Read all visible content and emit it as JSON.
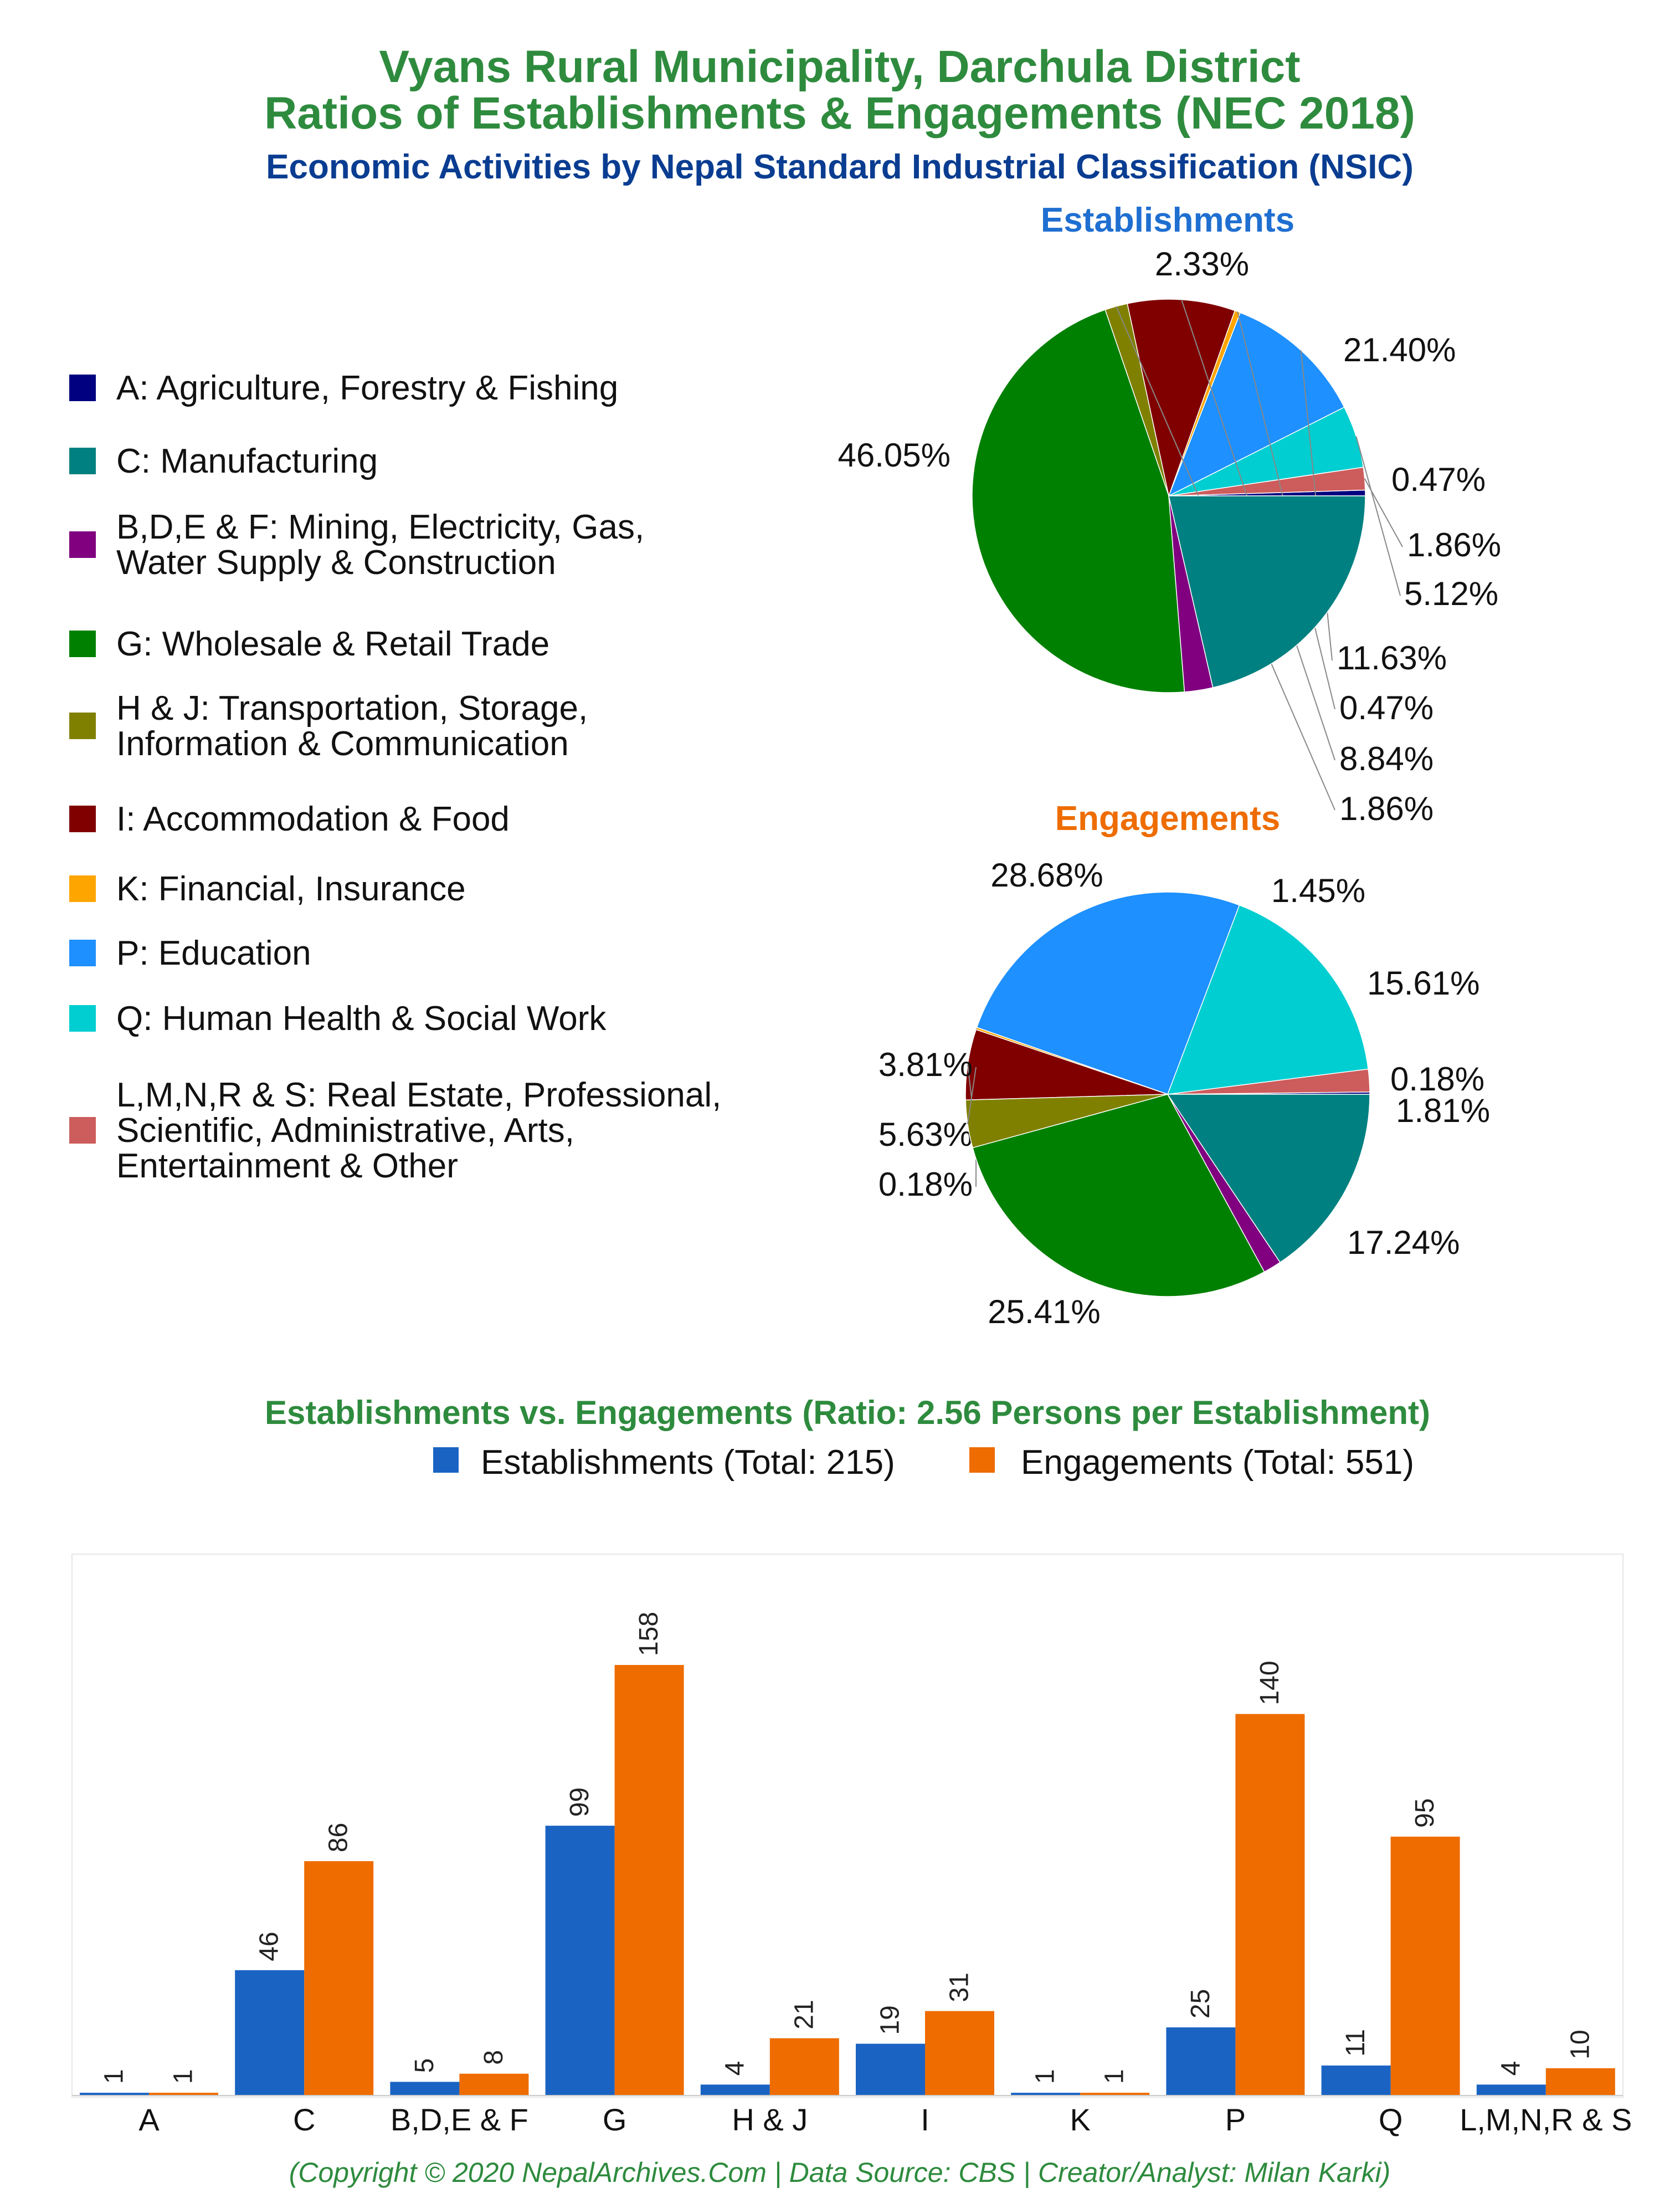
{
  "header": {
    "title_line1": "Vyans Rural Municipality, Darchula District",
    "title_line2": "Ratios of Establishments & Engagements (NEC 2018)",
    "subtitle": "Economic Activities by Nepal Standard Industrial Classification (NSIC)"
  },
  "legend": {
    "items": [
      {
        "lines": [
          "A: Agriculture, Forestry & Fishing"
        ],
        "color": "#000080"
      },
      {
        "lines": [
          "C: Manufacturing"
        ],
        "color": "#008080"
      },
      {
        "lines": [
          "B,D,E & F: Mining, Electricity, Gas,",
          "Water Supply & Construction"
        ],
        "color": "#800080"
      },
      {
        "lines": [
          "G: Wholesale & Retail Trade"
        ],
        "color": "#008000"
      },
      {
        "lines": [
          "H & J: Transportation, Storage,",
          "Information & Communication"
        ],
        "color": "#808000"
      },
      {
        "lines": [
          "I: Accommodation & Food"
        ],
        "color": "#800000"
      },
      {
        "lines": [
          "K: Financial, Insurance"
        ],
        "color": "#FFA500"
      },
      {
        "lines": [
          "P: Education"
        ],
        "color": "#1E90FF"
      },
      {
        "lines": [
          "Q: Human Health & Social Work"
        ],
        "color": "#00CED1"
      },
      {
        "lines": [
          "L,M,N,R & S: Real Estate, Professional,",
          "Scientific, Administrative, Arts,",
          "Entertainment & Other"
        ],
        "color": "#CD5C5C"
      }
    ]
  },
  "bar_legend": {
    "establishments": "Establishments (Total: 215)",
    "engagements": "Engagements (Total: 551)"
  },
  "footer": "(Copyright © 2020 NepalArchives.Com | Data Source: CBS | Creator/Analyst: Milan Karki)",
  "colors": {
    "establishments": "#1a63c3",
    "engagements": "#ee6c00"
  },
  "chart_data": [
    {
      "type": "pie",
      "title": "Establishments",
      "slices": [
        {
          "label": "A",
          "value": 0.47,
          "text": "0.47%",
          "color": "#000080"
        },
        {
          "label": "L,M,N,R & S",
          "value": 1.86,
          "text": "1.86%",
          "color": "#CD5C5C"
        },
        {
          "label": "Q",
          "value": 5.12,
          "text": "5.12%",
          "color": "#00CED1"
        },
        {
          "label": "P",
          "value": 11.63,
          "text": "11.63%",
          "color": "#1E90FF"
        },
        {
          "label": "K",
          "value": 0.47,
          "text": "0.47%",
          "color": "#FFA500"
        },
        {
          "label": "I",
          "value": 8.84,
          "text": "8.84%",
          "color": "#800000"
        },
        {
          "label": "H & J",
          "value": 1.86,
          "text": "1.86%",
          "color": "#808000"
        },
        {
          "label": "G",
          "value": 46.05,
          "text": "46.05%",
          "color": "#008000"
        },
        {
          "label": "B,D,E & F",
          "value": 2.33,
          "text": "2.33%",
          "color": "#800080"
        },
        {
          "label": "C",
          "value": 21.4,
          "text": "21.40%",
          "color": "#008080"
        }
      ]
    },
    {
      "type": "pie",
      "title": "Engagements",
      "slices": [
        {
          "label": "A",
          "value": 0.18,
          "text": "0.18%",
          "color": "#000080"
        },
        {
          "label": "L,M,N,R & S",
          "value": 1.81,
          "text": "1.81%",
          "color": "#CD5C5C"
        },
        {
          "label": "Q",
          "value": 17.24,
          "text": "17.24%",
          "color": "#00CED1"
        },
        {
          "label": "P",
          "value": 25.41,
          "text": "25.41%",
          "color": "#1E90FF"
        },
        {
          "label": "K",
          "value": 0.18,
          "text": "0.18%",
          "color": "#FFA500"
        },
        {
          "label": "I",
          "value": 5.63,
          "text": "5.63%",
          "color": "#800000"
        },
        {
          "label": "H & J",
          "value": 3.81,
          "text": "3.81%",
          "color": "#808000"
        },
        {
          "label": "G",
          "value": 28.68,
          "text": "28.68%",
          "color": "#008000"
        },
        {
          "label": "B,D,E & F",
          "value": 1.45,
          "text": "1.45%",
          "color": "#800080"
        },
        {
          "label": "C",
          "value": 15.61,
          "text": "15.61%",
          "color": "#008080"
        }
      ]
    },
    {
      "type": "bar",
      "title": "Establishments vs. Engagements (Ratio: 2.56 Persons per Establishment)",
      "categories": [
        "A",
        "C",
        "B,D,E & F",
        "G",
        "H & J",
        "I",
        "K",
        "P",
        "Q",
        "L,M,N,R & S"
      ],
      "series": [
        {
          "name": "Establishments (Total: 215)",
          "values": [
            1,
            46,
            5,
            99,
            4,
            19,
            1,
            25,
            11,
            4
          ]
        },
        {
          "name": "Engagements (Total: 551)",
          "values": [
            1,
            86,
            8,
            158,
            21,
            31,
            1,
            140,
            95,
            10
          ]
        }
      ],
      "ylim": [
        0,
        158
      ],
      "grid": false,
      "legend": "top"
    }
  ]
}
